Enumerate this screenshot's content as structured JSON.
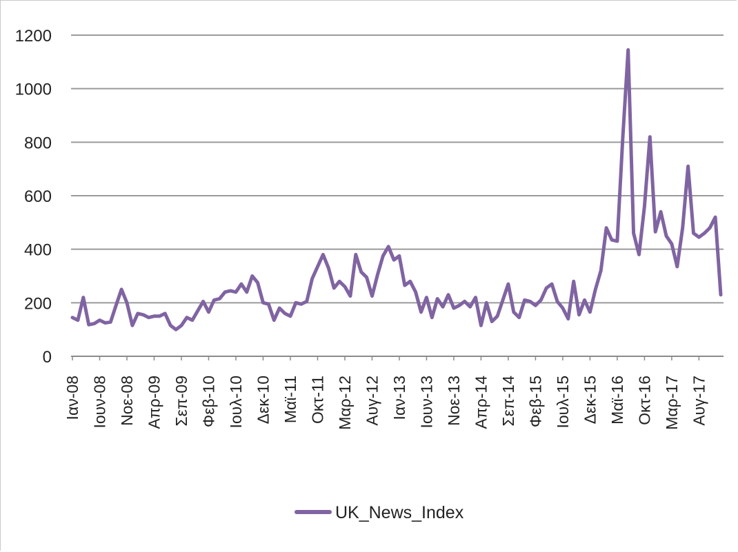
{
  "chart_data": {
    "type": "line",
    "title": "",
    "xlabel": "",
    "ylabel": "",
    "ylim": [
      0,
      1200
    ],
    "yticks": [
      0,
      200,
      400,
      600,
      800,
      1000,
      1200
    ],
    "grid": "horizontal",
    "legend_position": "bottom",
    "color": "#8064a2",
    "xtick_labels": [
      "Ιαν-08",
      "Ιουν-08",
      "Νοε-08",
      "Απρ-09",
      "Σεπ-09",
      "Φεβ-10",
      "Ιουλ-10",
      "Δεκ-10",
      "Μαϊ-11",
      "Οκτ-11",
      "Μαρ-12",
      "Αυγ-12",
      "Ιαν-13",
      "Ιουν-13",
      "Νοε-13",
      "Απρ-14",
      "Σεπ-14",
      "Φεβ-15",
      "Ιουλ-15",
      "Δεκ-15",
      "Μαϊ-16",
      "Οκτ-16",
      "Μαρ-17",
      "Αυγ-17"
    ],
    "series": [
      {
        "name": "UK_News_Index",
        "values": [
          145,
          135,
          220,
          118,
          122,
          135,
          125,
          128,
          190,
          250,
          200,
          115,
          160,
          155,
          145,
          150,
          150,
          160,
          115,
          100,
          115,
          145,
          135,
          170,
          205,
          165,
          210,
          215,
          240,
          245,
          240,
          270,
          240,
          300,
          275,
          200,
          195,
          135,
          180,
          160,
          150,
          200,
          195,
          205,
          290,
          335,
          380,
          330,
          255,
          280,
          260,
          225,
          380,
          315,
          295,
          225,
          305,
          375,
          410,
          360,
          375,
          265,
          280,
          240,
          165,
          220,
          145,
          215,
          185,
          230,
          180,
          190,
          205,
          185,
          220,
          115,
          200,
          130,
          150,
          210,
          270,
          165,
          145,
          210,
          205,
          190,
          210,
          255,
          270,
          205,
          180,
          140,
          280,
          155,
          210,
          165,
          250,
          320,
          480,
          435,
          430,
          810,
          1145,
          460,
          380,
          560,
          820,
          465,
          540,
          450,
          420,
          335,
          480,
          710,
          460,
          445,
          460,
          480,
          520,
          230
        ]
      }
    ]
  }
}
